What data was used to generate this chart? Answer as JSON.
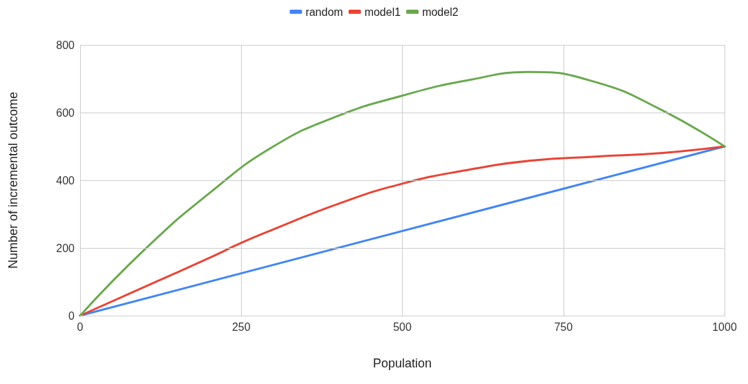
{
  "chart_data": {
    "type": "line",
    "xlabel": "Population",
    "ylabel": "Number of incremental outcome",
    "xlim": [
      0,
      1000
    ],
    "xticks": [
      0,
      250,
      500,
      750,
      1000
    ],
    "ylim": [
      0,
      800
    ],
    "yticks": [
      0,
      200,
      400,
      600,
      800
    ],
    "grid": true,
    "legend": "top",
    "marker": "none",
    "line_style": "solid",
    "series": [
      {
        "name": "random",
        "color": "#4285f4",
        "x": [
          0,
          1000
        ],
        "values": [
          0,
          500
        ]
      },
      {
        "name": "model1",
        "color": "#ea4335",
        "x": [
          0,
          100,
          200,
          250,
          300,
          400,
          500,
          600,
          700,
          800,
          900,
          1000
        ],
        "values": [
          0,
          85,
          170,
          215,
          255,
          330,
          390,
          430,
          458,
          470,
          480,
          500
        ]
      },
      {
        "name": "model2",
        "color": "#6aa84f",
        "x": [
          0,
          100,
          200,
          300,
          400,
          500,
          600,
          700,
          800,
          900,
          1000
        ],
        "values": [
          0,
          195,
          361,
          500,
          590,
          650,
          695,
          720,
          690,
          610,
          500
        ]
      }
    ]
  }
}
